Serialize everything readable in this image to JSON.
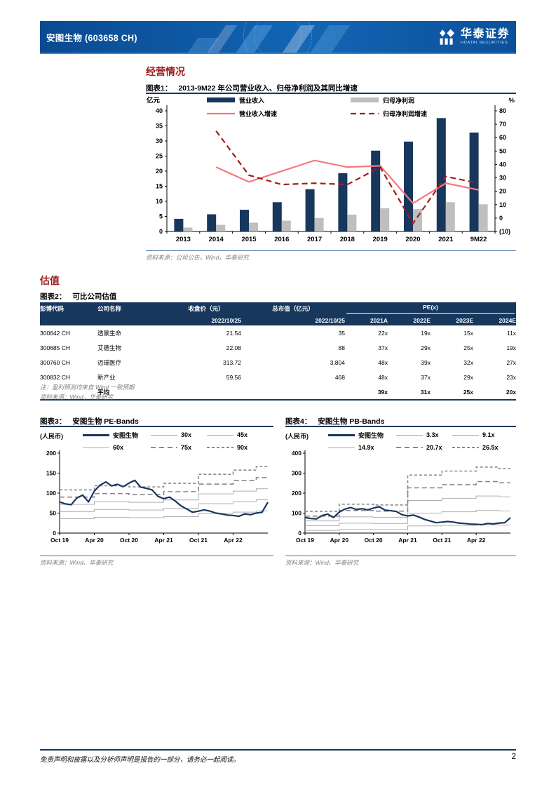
{
  "colors": {
    "band_blue": "#0F5AA6",
    "navy": "#17375D",
    "bar_gray": "#BFBFBF",
    "line_pink": "#F4797E",
    "line_dark_red": "#A51C1C",
    "section_red": "#9C1B1E",
    "source_gray": "#7F7F7F",
    "band_solid_gray": "#AFAFAF",
    "band_dash_gray": "#8A8A8A"
  },
  "header": {
    "stock_title": "安图生物 (603658 CH)",
    "brand_cn": "华泰证券",
    "brand_en": "HUATAI SECURITIES"
  },
  "sections": {
    "operations": "经营情况",
    "valuation": "估值"
  },
  "figures": {
    "fig1": {
      "label": "图表1：",
      "source": "资料来源：公司公告，Wind，华泰研究"
    },
    "fig2": {
      "label": "图表2：",
      "title": "可比公司估值",
      "note": "注：盈利预测均来自 Wind 一致预期",
      "source": "资料来源：Wind，华泰研究"
    },
    "fig3": {
      "label": "图表3：",
      "source": "资料来源：Wind、华泰研究"
    },
    "fig4": {
      "label": "图表4：",
      "source": "资料来源：Wind、华泰研究"
    }
  },
  "table": {
    "headers1": [
      "彭博代码",
      "公司名称",
      "收盘价（元）",
      "总市值（亿元）",
      "PE(x)"
    ],
    "headers2": [
      "",
      "",
      "2022/10/25",
      "2022/10/25",
      "2021A",
      "2022E",
      "2023E",
      "2024E"
    ],
    "rows": [
      [
        "300642 CH",
        "透景生命",
        "21.54",
        "35",
        "22x",
        "19x",
        "15x",
        "11x"
      ],
      [
        "300685 CH",
        "艾德生物",
        "22.08",
        "88",
        "37x",
        "29x",
        "25x",
        "19x"
      ],
      [
        "300760 CH",
        "迈瑞医疗",
        "313.72",
        "3,804",
        "48x",
        "39x",
        "32x",
        "27x"
      ],
      [
        "300832 CH",
        "新产业",
        "59.56",
        "468",
        "48x",
        "37x",
        "29x",
        "23x"
      ]
    ],
    "avg_row": [
      "",
      "平均",
      "",
      "",
      "39x",
      "31x",
      "25x",
      "20x"
    ]
  },
  "chart_data": [
    {
      "id": "fig1",
      "type": "bar+line",
      "title": "2013-9M22 年公司营业收入、归母净利润及其同比增速",
      "categories": [
        "2013",
        "2014",
        "2015",
        "2016",
        "2017",
        "2018",
        "2019",
        "2020",
        "2021",
        "9M22"
      ],
      "left_axis": {
        "label": "亿元",
        "min": 0,
        "max": 40,
        "step": 5
      },
      "right_axis": {
        "label": "%",
        "min": -10,
        "max": 80,
        "step": 10
      },
      "bar_series": [
        {
          "name": "营业收入",
          "color": "#17375D",
          "values": [
            4.2,
            5.7,
            7.2,
            9.7,
            14.0,
            19.3,
            26.8,
            29.8,
            37.6,
            32.8
          ]
        },
        {
          "name": "归母净利润",
          "color": "#BFBFBF",
          "values": [
            1.3,
            2.2,
            2.9,
            3.6,
            4.5,
            5.6,
            7.7,
            7.4,
            9.7,
            9.0
          ]
        }
      ],
      "line_series": [
        {
          "name": "营业收入增速",
          "color": "#F4797E",
          "dash": "",
          "values": [
            null,
            38,
            27,
            35,
            43,
            38,
            39,
            11,
            26,
            21
          ]
        },
        {
          "name": "归母净利润增速",
          "color": "#A51C1C",
          "dash": "8,5",
          "values": [
            null,
            65,
            32,
            25,
            26,
            25,
            38,
            -4,
            31,
            26
          ]
        }
      ]
    },
    {
      "id": "fig3",
      "type": "line",
      "title": "安图生物 PE-Bands",
      "unit": "(人民币)",
      "ylim": [
        0,
        200
      ],
      "ystep": 50,
      "x_tick_idx": [
        0,
        6,
        12,
        18,
        24,
        30
      ],
      "x_tick_labels": [
        "Oct 19",
        "Apr 20",
        "Oct 20",
        "Apr 21",
        "Oct 21",
        "Apr 22"
      ],
      "price_name": "安图生物",
      "price": [
        78,
        73,
        71,
        88,
        95,
        78,
        105,
        120,
        128,
        118,
        122,
        116,
        125,
        132,
        115,
        112,
        108,
        92,
        86,
        90,
        80,
        68,
        60,
        52,
        55,
        58,
        55,
        50,
        48,
        45,
        44,
        42,
        48,
        46,
        50,
        52,
        77
      ],
      "base_mult": 30,
      "base_steps": [
        {
          "len": 6,
          "v": 36
        },
        {
          "len": 6,
          "v": 39.5
        },
        {
          "len": 6,
          "v": 38.5
        },
        {
          "len": 6,
          "v": 41.5
        },
        {
          "len": 6,
          "v": 49
        },
        {
          "len": 4,
          "v": 52.5
        },
        {
          "len": 3,
          "v": 55.5
        }
      ],
      "bands": [
        {
          "name": "30x",
          "mult": 30,
          "style": "solid"
        },
        {
          "name": "45x",
          "mult": 45,
          "style": "solid"
        },
        {
          "name": "60x",
          "mult": 60,
          "style": "solid"
        },
        {
          "name": "75x",
          "mult": 75,
          "style": "dash1"
        },
        {
          "name": "90x",
          "mult": 90,
          "style": "dash2"
        }
      ]
    },
    {
      "id": "fig4",
      "type": "line",
      "title": "安图生物 PB-Bands",
      "unit": "(人民币)",
      "ylim": [
        0,
        400
      ],
      "ystep": 100,
      "x_tick_idx": [
        0,
        6,
        12,
        18,
        24,
        30
      ],
      "x_tick_labels": [
        "Oct 19",
        "Apr 20",
        "Oct 20",
        "Apr 21",
        "Oct 21",
        "Apr 22"
      ],
      "price_name": "安图生物",
      "price": [
        78,
        73,
        71,
        88,
        95,
        78,
        105,
        120,
        128,
        118,
        122,
        116,
        125,
        132,
        115,
        112,
        108,
        92,
        86,
        90,
        80,
        68,
        60,
        52,
        55,
        58,
        55,
        50,
        48,
        45,
        44,
        42,
        48,
        46,
        50,
        52,
        77
      ],
      "base_mult": 1,
      "base_steps": [
        {
          "len": 6,
          "v": 4.1
        },
        {
          "len": 6,
          "v": 5.45
        },
        {
          "len": 6,
          "v": 5.3
        },
        {
          "len": 6,
          "v": 10.95
        },
        {
          "len": 6,
          "v": 11.7
        },
        {
          "len": 4,
          "v": 12.45
        },
        {
          "len": 3,
          "v": 12.15
        }
      ],
      "bands": [
        {
          "name": "3.3x",
          "mult": 3.3,
          "style": "solid"
        },
        {
          "name": "9.1x",
          "mult": 9.1,
          "style": "solid"
        },
        {
          "name": "14.9x",
          "mult": 14.9,
          "style": "solid"
        },
        {
          "name": "20.7x",
          "mult": 20.7,
          "style": "dash1"
        },
        {
          "name": "26.5x",
          "mult": 26.5,
          "style": "dash2"
        }
      ]
    }
  ],
  "footer": {
    "disclaimer": "免责声明和披露以及分析师声明是报告的一部分，请务必一起阅读。",
    "page": "2"
  }
}
